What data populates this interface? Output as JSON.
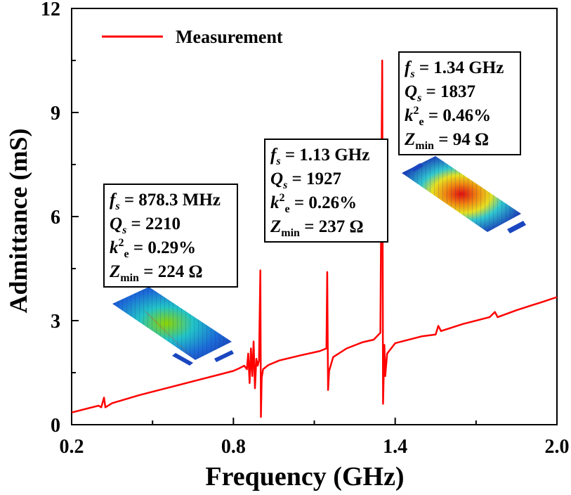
{
  "chart_data": {
    "type": "line",
    "xlabel": "Frequency (GHz)",
    "ylabel": "Admittance (mS)",
    "xlim": [
      0.2,
      2.0
    ],
    "ylim": [
      0,
      12
    ],
    "x_ticks": [
      "0.2",
      "0.8",
      "1.4",
      "2.0"
    ],
    "y_ticks": [
      "0",
      "3",
      "6",
      "9",
      "12"
    ],
    "grid": false,
    "legend_position": "top-left",
    "series": [
      {
        "name": "Measurement",
        "color": "#ff0000",
        "points": [
          [
            0.2,
            0.35
          ],
          [
            0.3,
            0.55
          ],
          [
            0.31,
            0.5
          ],
          [
            0.32,
            0.78
          ],
          [
            0.325,
            0.5
          ],
          [
            0.35,
            0.62
          ],
          [
            0.45,
            0.85
          ],
          [
            0.55,
            1.05
          ],
          [
            0.65,
            1.25
          ],
          [
            0.75,
            1.45
          ],
          [
            0.8,
            1.55
          ],
          [
            0.82,
            1.62
          ],
          [
            0.84,
            1.7
          ],
          [
            0.85,
            1.6
          ],
          [
            0.855,
            2.05
          ],
          [
            0.86,
            1.2
          ],
          [
            0.865,
            2.2
          ],
          [
            0.87,
            1.4
          ],
          [
            0.875,
            2.4
          ],
          [
            0.88,
            1.05
          ],
          [
            0.885,
            1.9
          ],
          [
            0.89,
            1.7
          ],
          [
            0.895,
            1.85
          ],
          [
            0.9,
            4.45
          ],
          [
            0.902,
            0.22
          ],
          [
            0.905,
            1.35
          ],
          [
            0.91,
            1.6
          ],
          [
            0.93,
            1.72
          ],
          [
            0.97,
            1.85
          ],
          [
            1.05,
            2.0
          ],
          [
            1.12,
            2.12
          ],
          [
            1.145,
            2.2
          ],
          [
            1.148,
            4.4
          ],
          [
            1.151,
            1.0
          ],
          [
            1.155,
            1.55
          ],
          [
            1.17,
            1.95
          ],
          [
            1.22,
            2.2
          ],
          [
            1.28,
            2.38
          ],
          [
            1.32,
            2.45
          ],
          [
            1.345,
            2.65
          ],
          [
            1.352,
            10.5
          ],
          [
            1.355,
            0.6
          ],
          [
            1.36,
            2.3
          ],
          [
            1.363,
            1.4
          ],
          [
            1.37,
            2.05
          ],
          [
            1.4,
            2.35
          ],
          [
            1.5,
            2.55
          ],
          [
            1.55,
            2.6
          ],
          [
            1.56,
            2.85
          ],
          [
            1.57,
            2.7
          ],
          [
            1.65,
            2.9
          ],
          [
            1.75,
            3.1
          ],
          [
            1.77,
            3.25
          ],
          [
            1.78,
            3.1
          ],
          [
            1.85,
            3.3
          ],
          [
            1.95,
            3.55
          ],
          [
            2.0,
            3.68
          ]
        ]
      }
    ],
    "annotations": [
      {
        "resonance": "fs = 878.3 MHz",
        "fs": "878.3 MHz",
        "Qs": "2210",
        "k2e": "0.29%",
        "Zmin": "224 Ω"
      },
      {
        "resonance": "fs = 1.13 GHz",
        "fs": "1.13 GHz",
        "Qs": "1927",
        "k2e": "0.26%",
        "Zmin": "237 Ω"
      },
      {
        "resonance": "fs = 1.34 GHz",
        "fs": "1.34 GHz",
        "Qs": "1837",
        "k2e": "0.46%",
        "Zmin": "94 Ω"
      }
    ]
  }
}
